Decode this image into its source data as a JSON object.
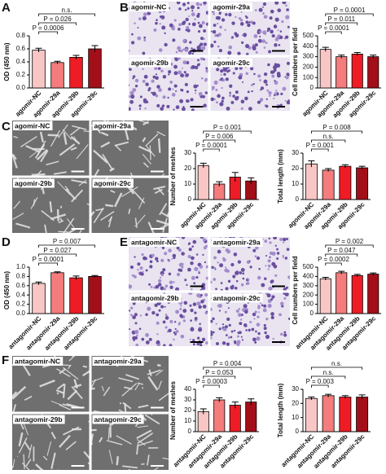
{
  "panel_letters": [
    "A",
    "B",
    "C",
    "D",
    "E",
    "F"
  ],
  "image_panels": [
    {
      "labels": [
        "agomir-NC",
        "agomir-29a",
        "agomir-29b",
        "agomir-29c"
      ]
    },
    {
      "labels": [
        "agomir-NC",
        "agomir-29a",
        "agomir-29b",
        "agomir-29c"
      ]
    },
    {
      "labels": [
        "antagomir-NC",
        "antagomir-29a",
        "antagomir-29b",
        "antagomir-29c"
      ]
    },
    {
      "labels": [
        "antagomir-NC",
        "antagomir-29a",
        "antagomir-29b",
        "antagomir-29c"
      ]
    }
  ],
  "chart_data": [
    {
      "type": "bar",
      "y_label": "OD (450 nm)",
      "categories": [
        "agomir-NC",
        "agomir-29a",
        "agomir-29b",
        "agomir-29c"
      ],
      "values": [
        0.58,
        0.39,
        0.47,
        0.6
      ],
      "errors": [
        0.03,
        0.02,
        0.03,
        0.05
      ],
      "colors": [
        "#f9c6c6",
        "#f47c7c",
        "#ee1c25",
        "#a30f19"
      ],
      "ylim": [
        0,
        0.8
      ],
      "yticks": [
        {
          "value": 0,
          "label": "0.0"
        },
        0.2,
        0.4,
        0.6,
        0.8
      ],
      "comparisons": [
        "P = 0.0006",
        "P = 0.026",
        "n.s."
      ]
    },
    {
      "type": "bar",
      "y_label": "Cell numbers per field",
      "categories": [
        "agomir-NC",
        "agomir-29a",
        "agomir-29b",
        "agomir-29c"
      ],
      "values": [
        370,
        300,
        325,
        300
      ],
      "errors": [
        20,
        15,
        15,
        15
      ],
      "colors": [
        "#f9c6c6",
        "#f47c7c",
        "#ee1c25",
        "#a30f19"
      ],
      "ylim": [
        0,
        500
      ],
      "yticks": [
        0,
        100,
        200,
        300,
        400,
        500
      ],
      "comparisons": [
        "P = 0.0001",
        "P = 0.011",
        "P = 0.0001"
      ]
    },
    {
      "type": "bar",
      "y_label": "Number of meshes",
      "categories": [
        "agomir-NC",
        "agomir-29a",
        "agomir-29b",
        "agomir-29c"
      ],
      "values": [
        22,
        10,
        14.5,
        12
      ],
      "errors": [
        1.5,
        1.5,
        3,
        2
      ],
      "colors": [
        "#f9c6c6",
        "#f47c7c",
        "#ee1c25",
        "#a30f19"
      ],
      "ylim": [
        0,
        30
      ],
      "yticks": [
        0,
        10,
        20,
        30
      ],
      "comparisons": [
        "P = 0.0001",
        "P = 0.006",
        "P = 0.001"
      ]
    },
    {
      "type": "bar",
      "y_label": "Total length (mm)",
      "categories": [
        "agomir-NC",
        "agomir-29a",
        "agomir-29b",
        "agomir-29c"
      ],
      "values": [
        23,
        19,
        21.5,
        20.5
      ],
      "errors": [
        2,
        1,
        1,
        1
      ],
      "colors": [
        "#f9c6c6",
        "#f47c7c",
        "#ee1c25",
        "#a30f19"
      ],
      "ylim": [
        0,
        30
      ],
      "yticks": [
        0,
        10,
        20,
        30
      ],
      "comparisons": [
        "P = 0.001",
        "n.s.",
        "P = 0.008"
      ]
    },
    {
      "type": "bar",
      "y_label": "OD (450 nm)",
      "categories": [
        "antagomir-NC",
        "antagomir-29a",
        "antagomir-29b",
        "antagomir-29c"
      ],
      "values": [
        0.65,
        0.88,
        0.77,
        0.8
      ],
      "errors": [
        0.03,
        0.02,
        0.04,
        0.02
      ],
      "colors": [
        "#f9c6c6",
        "#f47c7c",
        "#ee1c25",
        "#a30f19"
      ],
      "ylim": [
        0,
        1
      ],
      "yticks": [
        {
          "value": 0,
          "label": "0.0"
        },
        0.2,
        0.4,
        0.6,
        0.8,
        {
          "value": 1,
          "label": "1.0"
        }
      ],
      "comparisons": [
        "P = 0.0001",
        "P = 0.027",
        "P = 0.007"
      ]
    },
    {
      "type": "bar",
      "y_label": "Cell numbers per field",
      "categories": [
        "antagomir-NC",
        "antagomir-29a",
        "antagomir-29b",
        "antagomir-29c"
      ],
      "values": [
        375,
        440,
        410,
        425
      ],
      "errors": [
        15,
        15,
        12,
        12
      ],
      "colors": [
        "#f9c6c6",
        "#f47c7c",
        "#ee1c25",
        "#a30f19"
      ],
      "ylim": [
        0,
        500
      ],
      "yticks": [
        0,
        100,
        200,
        300,
        400,
        500
      ],
      "comparisons": [
        "P = 0.0002",
        "P = 0.047",
        "P = 0.002"
      ]
    },
    {
      "type": "bar",
      "y_label": "Number of meshes",
      "categories": [
        "antagomir-NC",
        "antagomir-29a",
        "antagomir-29b",
        "antagomir-29c"
      ],
      "values": [
        19,
        30,
        25,
        28
      ],
      "errors": [
        2.5,
        2,
        3,
        3
      ],
      "colors": [
        "#f9c6c6",
        "#f47c7c",
        "#ee1c25",
        "#a30f19"
      ],
      "ylim": [
        0,
        40
      ],
      "yticks": [
        0,
        10,
        20,
        30,
        40
      ],
      "comparisons": [
        "P = 0.0003",
        "P = 0.053",
        "P = 0.004"
      ]
    },
    {
      "type": "bar",
      "y_label": "Total length (mm)",
      "categories": [
        "antagomir-NC",
        "antagomir-29a",
        "antagomir-29b",
        "antagomir-29c"
      ],
      "values": [
        23.5,
        25.5,
        24.5,
        24.5
      ],
      "errors": [
        1,
        1,
        1,
        1.5
      ],
      "colors": [
        "#f9c6c6",
        "#f47c7c",
        "#ee1c25",
        "#a30f19"
      ],
      "ylim": [
        0,
        30
      ],
      "yticks": [
        0,
        10,
        20,
        30
      ],
      "comparisons": [
        "P = 0.003",
        "n.s.",
        "n.s."
      ]
    }
  ]
}
